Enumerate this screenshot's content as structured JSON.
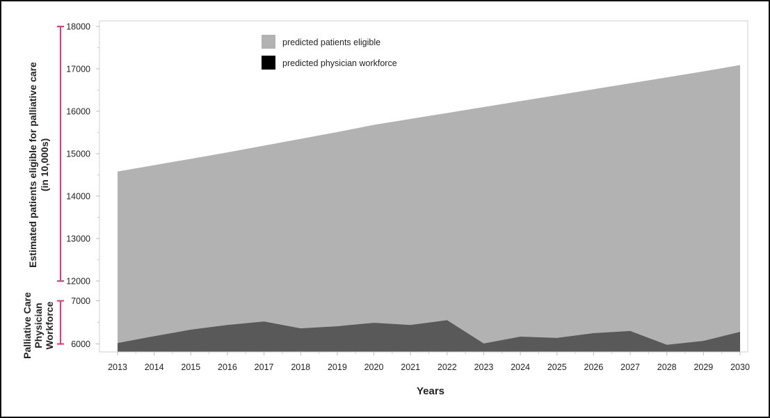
{
  "chart_data": {
    "type": "area",
    "title": "",
    "xlabel": "Years",
    "ylabel_upper": [
      "Estimated patients eligible for palliative care",
      "(in 10,000s)"
    ],
    "ylabel_lower": [
      "Palliative Care",
      "Physician",
      "Workforce"
    ],
    "x": [
      "2013",
      "2014",
      "2015",
      "2016",
      "2017",
      "2018",
      "2019",
      "2020",
      "2021",
      "2022",
      "2023",
      "2024",
      "2025",
      "2026",
      "2027",
      "2028",
      "2029",
      "2030"
    ],
    "upper_axis": {
      "ylim": [
        12000,
        18000
      ],
      "ticks": [
        "12000",
        "13000",
        "14000",
        "15000",
        "16000",
        "17000",
        "18000"
      ]
    },
    "lower_axis": {
      "ylim": [
        6000,
        7000
      ],
      "ticks": [
        "6000",
        "7000"
      ]
    },
    "series": [
      {
        "name": "predicted patients eligible",
        "axis": "upper",
        "color": "#b2b2b2",
        "values": [
          14580,
          14730,
          14880,
          15030,
          15190,
          15350,
          15510,
          15680,
          15820,
          15960,
          16100,
          16240,
          16380,
          16520,
          16660,
          16800,
          16940,
          17090
        ]
      },
      {
        "name": "predicted physician workforce",
        "axis": "lower",
        "color": "#595959",
        "values": [
          6020,
          6180,
          6330,
          6440,
          6520,
          6360,
          6410,
          6490,
          6440,
          6550,
          6010,
          6170,
          6140,
          6250,
          6300,
          5980,
          6070,
          6280
        ]
      }
    ],
    "legend": {
      "placement": "top-left",
      "entries": [
        "predicted patients eligible",
        "predicted physician workforce"
      ],
      "swatch_colors": [
        "#b2b2b2",
        "#000000"
      ]
    },
    "bracket_color": "#ff2d6b"
  }
}
